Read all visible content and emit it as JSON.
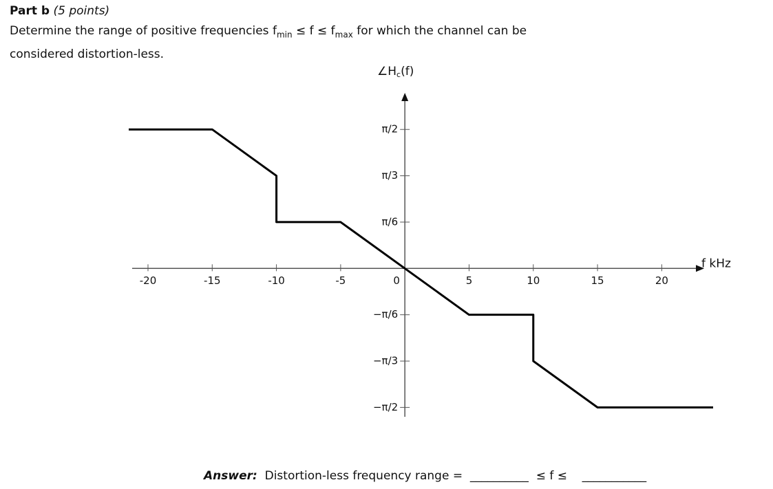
{
  "header": {
    "part": "Part b",
    "points": "(5 points)"
  },
  "question": {
    "lines": [
      [
        "Determine the range of positive frequencies f",
        "min",
        " ≤ f ≤ f",
        "max",
        " for which the channel can be"
      ],
      [
        "considered distortion-less."
      ]
    ]
  },
  "chart_data": {
    "type": "line",
    "y_label": [
      "∠H",
      "c",
      "(f)"
    ],
    "x_label": "f kHz",
    "x": [
      -21.5,
      -15,
      -10,
      -10,
      -5,
      0,
      5,
      10,
      10,
      15,
      24
    ],
    "values": [
      1.5708,
      1.5708,
      1.0472,
      0.5236,
      0.5236,
      0,
      -0.5236,
      -0.5236,
      -1.0472,
      -1.5708,
      -1.5708
    ],
    "color": "#000000",
    "xlim": [
      -21.5,
      24
    ],
    "ylim": [
      -1.7,
      2.0
    ],
    "xticks": [
      -20,
      -15,
      -10,
      -5,
      0,
      5,
      10,
      15,
      20
    ],
    "yticks": [
      {
        "value": 1.5708,
        "label": "π/2"
      },
      {
        "value": 1.0472,
        "label": "π/3"
      },
      {
        "value": 0.5236,
        "label": "π/6"
      },
      {
        "value": -0.5236,
        "label": "−π/6"
      },
      {
        "value": -1.0472,
        "label": "−π/3"
      },
      {
        "value": -1.5708,
        "label": "−π/2"
      }
    ]
  },
  "answer": {
    "label": "Answer:",
    "text": "Distortion-less frequency range =",
    "blank1": "__________",
    "relation": "≤ f ≤",
    "blank2": "___________"
  }
}
